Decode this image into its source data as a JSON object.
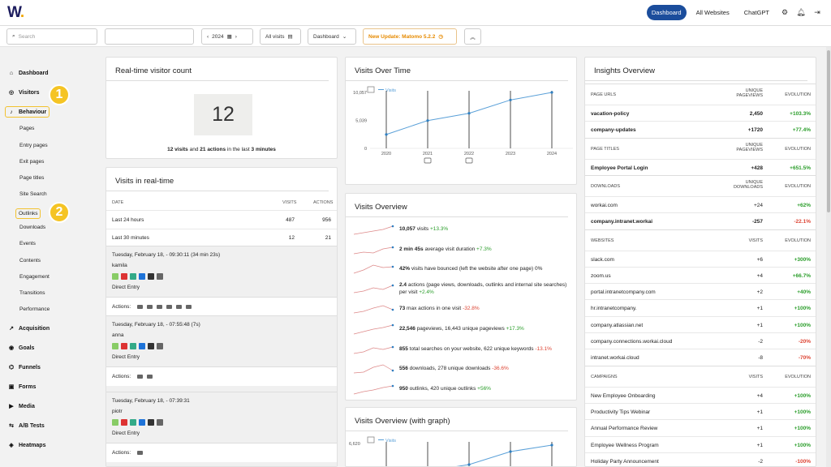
{
  "header": {
    "logo": "W",
    "nav": [
      "Dashboard",
      "All Websites",
      "ChatGPT"
    ],
    "active": "Dashboard"
  },
  "controls": {
    "search_placeholder": "Search",
    "year": "2024",
    "segment": "All visits",
    "dashboard": "Dashboard",
    "update": "New Update: Matomo 5.2.2"
  },
  "sidebar": {
    "main": [
      {
        "label": "Dashboard",
        "icon": "home-icon"
      },
      {
        "label": "Visitors",
        "icon": "eye-icon"
      },
      {
        "label": "Behaviour",
        "icon": "bell-icon"
      }
    ],
    "behaviour_sub": [
      "Pages",
      "Entry pages",
      "Exit pages",
      "Page titles",
      "Site Search",
      "Outlinks",
      "Downloads",
      "Events",
      "Contents",
      "Engagement",
      "Transitions",
      "Performance"
    ],
    "bottom": [
      {
        "label": "Acquisition",
        "icon": "acquisition-icon"
      },
      {
        "label": "Goals",
        "icon": "goals-icon"
      },
      {
        "label": "Funnels",
        "icon": "funnel-icon"
      },
      {
        "label": "Forms",
        "icon": "forms-icon"
      },
      {
        "label": "Media",
        "icon": "media-icon"
      },
      {
        "label": "A/B Tests",
        "icon": "ab-icon"
      },
      {
        "label": "Heatmaps",
        "icon": "heatmap-icon"
      }
    ],
    "badge1": "1",
    "badge2": "2"
  },
  "realtime": {
    "title": "Real-time visitor count",
    "count": "12",
    "visits": "12 visits",
    "and": "and",
    "actions": "21 actions",
    "suffix": "in the last",
    "minutes": "3 minutes"
  },
  "visits_rt": {
    "title": "Visits in real-time",
    "headers": [
      "DATE",
      "VISITS",
      "ACTIONS"
    ],
    "rows": [
      {
        "label": "Last 24 hours",
        "visits": "487",
        "actions": "956"
      },
      {
        "label": "Last 30 minutes",
        "visits": "12",
        "actions": "21"
      }
    ],
    "logs": [
      {
        "time": "Tuesday, February 18, - 09:30:11 (34 min 23s)",
        "user": "kamila",
        "entry": "Direct Entry",
        "actions": "Actions:"
      },
      {
        "time": "Tuesday, February 18, - 07:55:48 (7s)",
        "user": "anna",
        "entry": "Direct Entry",
        "actions": "Actions:"
      },
      {
        "time": "Tuesday, February 18, - 07:39:31",
        "user": "piotr",
        "entry": "Direct Entry",
        "actions": "Actions:"
      }
    ]
  },
  "visits_time": {
    "title": "Visits Over Time",
    "legend": "Visits",
    "y_ticks": [
      "10,057",
      "5,039",
      "0"
    ]
  },
  "chart_data": {
    "type": "line",
    "x": [
      "2020",
      "2021",
      "2022",
      "2023",
      "2024"
    ],
    "series": [
      {
        "name": "Visits",
        "values": [
          2500,
          5000,
          6300,
          8700,
          10057
        ]
      }
    ],
    "ylim": [
      0,
      10057
    ]
  },
  "overview": {
    "title": "Visits Overview",
    "rows": [
      {
        "main": "10,057",
        "rest": " visits",
        "delta": "+13.3%",
        "dir": "up"
      },
      {
        "main": "2 min 45s",
        "rest": " average visit duration",
        "delta": "+7.3%",
        "dir": "up"
      },
      {
        "main": "42%",
        "rest": " visits have bounced (left the website after one page)",
        "delta": "0%",
        "dir": "flat"
      },
      {
        "main": "2.4",
        "rest": " actions (page views, downloads, outlinks and internal site searches) per visit",
        "delta": "+2.4%",
        "dir": "up"
      },
      {
        "main": "73",
        "rest": " max actions in one visit",
        "delta": "-32.8%",
        "dir": "down"
      },
      {
        "main": "22,546",
        "rest": " pageviews, 16,443 unique pageviews",
        "delta": "+17.3%",
        "dir": "up"
      },
      {
        "main": "855",
        "rest": " total searches on your website, 622 unique keywords",
        "delta": "-13.1%",
        "dir": "down"
      },
      {
        "main": "556",
        "rest": " downloads, 278 unique downloads",
        "delta": "-36.6%",
        "dir": "down"
      },
      {
        "main": "950",
        "rest": " outlinks, 420 unique outlinks",
        "delta": "+56%",
        "dir": "up"
      }
    ]
  },
  "overview_graph": {
    "title": "Visits Overview (with graph)",
    "legend": "Visits",
    "y_tick": "6,620"
  },
  "insights": {
    "title": "Insights Overview",
    "sections": [
      {
        "h": [
          "PAGE URLS",
          "UNIQUE PAGEVIEWS",
          "EVOLUTION"
        ],
        "rows": [
          [
            "vacation-policy",
            "2,450",
            "+103.3%"
          ],
          [
            "company-updates",
            "+1720",
            "+77.4%"
          ]
        ],
        "bold": true
      },
      {
        "h": [
          "PAGE TITLES",
          "UNIQUE PAGEVIEWS",
          "EVOLUTION"
        ],
        "rows": [
          [
            "Employee Portal Login",
            "+428",
            "+651.5%"
          ]
        ],
        "bold": true
      },
      {
        "h": [
          "DOWNLOADS",
          "UNIQUE DOWNLOADS",
          "EVOLUTION"
        ],
        "rows": [
          [
            "workai.com",
            "+24",
            "+62%"
          ],
          [
            "company.intranet.workai",
            "-257",
            "-22.1%"
          ]
        ]
      },
      {
        "h": [
          "WEBSITES",
          "VISITS",
          "EVOLUTION"
        ],
        "rows": [
          [
            "slack.com",
            "+6",
            "+300%"
          ],
          [
            "zoom.us",
            "+4",
            "+66.7%"
          ],
          [
            "portal.intranetcompany.com",
            "+2",
            "+40%"
          ],
          [
            "hr.intranetcompany.",
            "+1",
            "+100%"
          ],
          [
            "company.atlassian.net",
            "+1",
            "+100%"
          ],
          [
            "company.connections.workai.cloud",
            "-2",
            "-20%"
          ],
          [
            "intranet.workai.cloud",
            "-8",
            "-70%"
          ]
        ]
      },
      {
        "h": [
          "CAMPAIGNS",
          "VISITS",
          "EVOLUTION"
        ],
        "rows": [
          [
            "New Employee Onboarding",
            "+4",
            "+100%"
          ],
          [
            "Productivity Tips Webinar",
            "+1",
            "+100%"
          ],
          [
            "Annual Performance Review",
            "+1",
            "+100%"
          ],
          [
            "Employee Wellness Program",
            "+1",
            "+100%"
          ],
          [
            "Holiday Party Announcement",
            "-2",
            "-100%"
          ]
        ]
      }
    ]
  }
}
